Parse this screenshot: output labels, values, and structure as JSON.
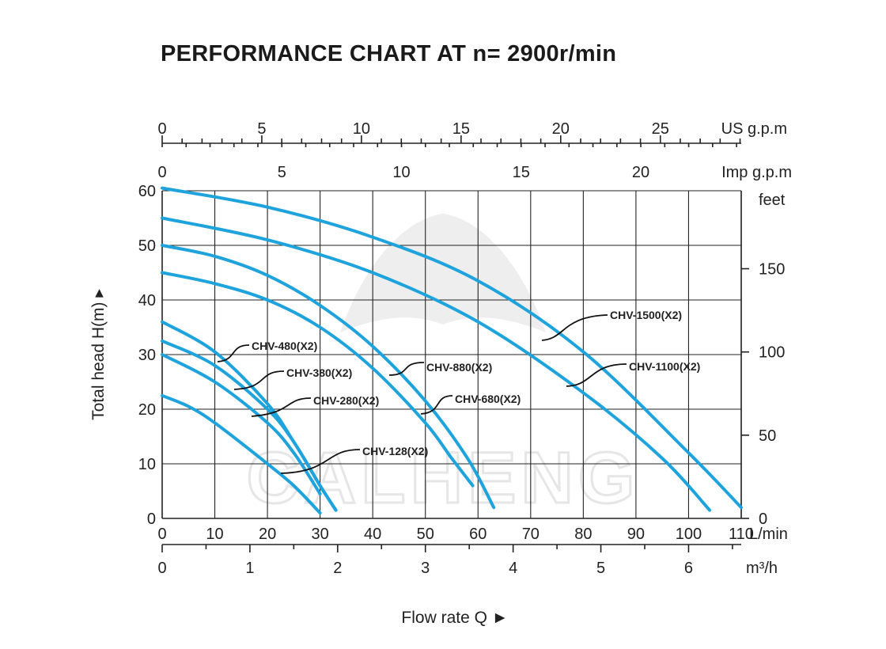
{
  "title": "PERFORMANCE CHART AT n= 2900r/min",
  "watermark": "CALHENG",
  "colors": {
    "curve": "#1fa3dc",
    "axis": "#222222",
    "watermark": "#e6e6e6"
  },
  "chart_data": {
    "type": "line",
    "title": "PERFORMANCE CHART AT n= 2900r/min",
    "xlabel": "Flow rate  Q",
    "ylabel": "Total  head H(m)",
    "x_unit": "L/min",
    "xlim": [
      0,
      110
    ],
    "ylim": [
      0,
      60
    ],
    "grid": true,
    "x_ticks": [
      0,
      10,
      20,
      30,
      40,
      50,
      60,
      70,
      80,
      90,
      100,
      110
    ],
    "y_ticks": [
      0,
      10,
      20,
      30,
      40,
      50,
      60
    ],
    "secondary_axes": {
      "us_gpm": {
        "label": "US g.p.m",
        "ticks": [
          0,
          5,
          10,
          15,
          20,
          25
        ]
      },
      "imp_gpm": {
        "label": "Imp g.p.m",
        "ticks": [
          0,
          5,
          10,
          15,
          20
        ]
      },
      "m3h": {
        "label": "m³/h",
        "ticks": [
          0,
          1,
          2,
          3,
          4,
          5,
          6
        ]
      },
      "feet": {
        "label": "feet",
        "ticks": [
          0,
          50,
          100,
          150
        ]
      }
    },
    "series": [
      {
        "name": "CHV-1500(X2)",
        "x": [
          0,
          20,
          40,
          60,
          80,
          100,
          110
        ],
        "y": [
          60.5,
          57,
          51.5,
          43.5,
          30.5,
          12,
          2
        ]
      },
      {
        "name": "CHV-1100(X2)",
        "x": [
          0,
          20,
          40,
          60,
          80,
          95,
          104
        ],
        "y": [
          55,
          51,
          45,
          36,
          23,
          11,
          1.5
        ]
      },
      {
        "name": "CHV-880(X2)",
        "x": [
          0,
          10,
          20,
          30,
          40,
          50,
          58,
          63
        ],
        "y": [
          50,
          48,
          44.5,
          39,
          31.5,
          21.5,
          11,
          2
        ]
      },
      {
        "name": "CHV-680(X2)",
        "x": [
          0,
          10,
          20,
          30,
          40,
          50,
          55,
          59
        ],
        "y": [
          45,
          43,
          40,
          35,
          27.5,
          17.5,
          11,
          6
        ]
      },
      {
        "name": "CHV-480(X2)",
        "x": [
          0,
          10,
          20,
          25,
          30,
          33
        ],
        "y": [
          36,
          30.5,
          21,
          14,
          6,
          1.5
        ]
      },
      {
        "name": "CHV-380(X2)",
        "x": [
          0,
          10,
          20,
          25,
          30,
          33
        ],
        "y": [
          32.5,
          28,
          20,
          14,
          6,
          1.5
        ]
      },
      {
        "name": "CHV-280(X2)",
        "x": [
          0,
          10,
          20,
          25,
          30
        ],
        "y": [
          30,
          25,
          17.5,
          12,
          4.5
        ]
      },
      {
        "name": "CHV-128(X2)",
        "x": [
          0,
          5,
          10,
          20,
          25,
          30
        ],
        "y": [
          22.5,
          20.5,
          17.5,
          10,
          6,
          1
        ]
      }
    ]
  }
}
